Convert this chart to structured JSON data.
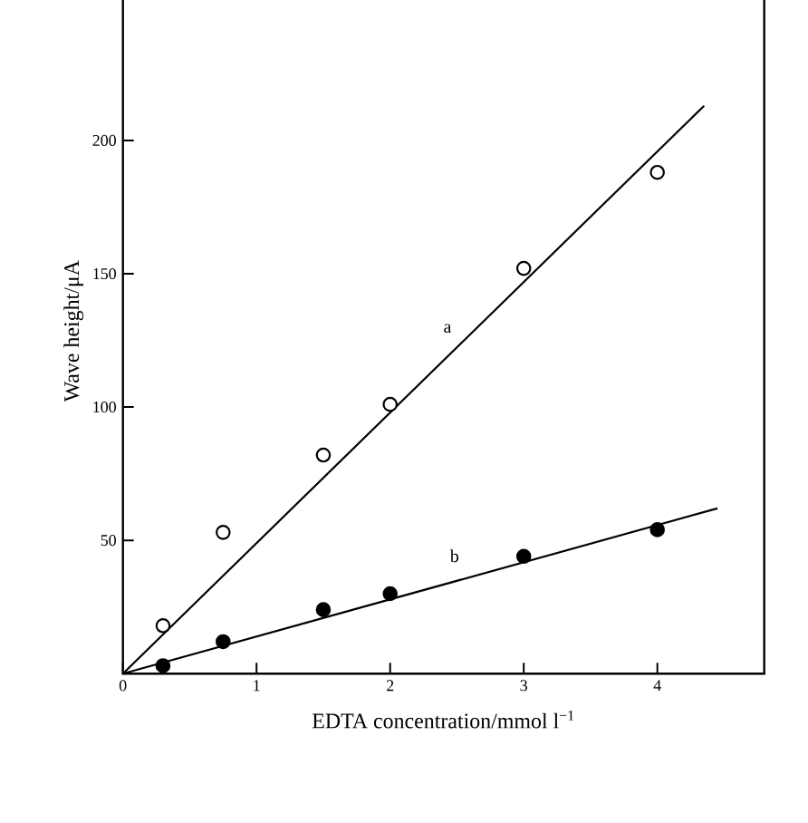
{
  "chart_data": {
    "type": "scatter",
    "xlabel": "EDTA concentration/mmol l$^{−1}$",
    "ylabel": "Wave height/μA",
    "xlim": [
      0,
      4.8
    ],
    "ylim": [
      0,
      257
    ],
    "xticks": [
      0,
      1,
      2,
      3,
      4
    ],
    "yticks": [
      50,
      100,
      150,
      200
    ],
    "grid": false,
    "series": [
      {
        "marker": "circle",
        "color": "#ffffff",
        "x": [
          0.3,
          0.75,
          1.5,
          2.0,
          3.0,
          4.0
        ],
        "values": [
          18,
          53,
          82,
          101,
          152,
          188
        ]
      },
      {
        "marker": "circle",
        "color": "#000000",
        "x": [
          0.3,
          0.75,
          1.5,
          2.0,
          3.0,
          4.0
        ],
        "values": [
          3,
          12,
          24,
          30,
          44,
          54
        ]
      },
      {
        "type": "line",
        "marker": "none",
        "color": "#000000",
        "x": [
          0,
          4.35
        ],
        "values": [
          0,
          213
        ]
      },
      {
        "type": "line",
        "marker": "none",
        "color": "#000000",
        "x": [
          0,
          4.45
        ],
        "values": [
          0,
          62
        ]
      }
    ],
    "annotations": [
      "a",
      "b"
    ]
  }
}
